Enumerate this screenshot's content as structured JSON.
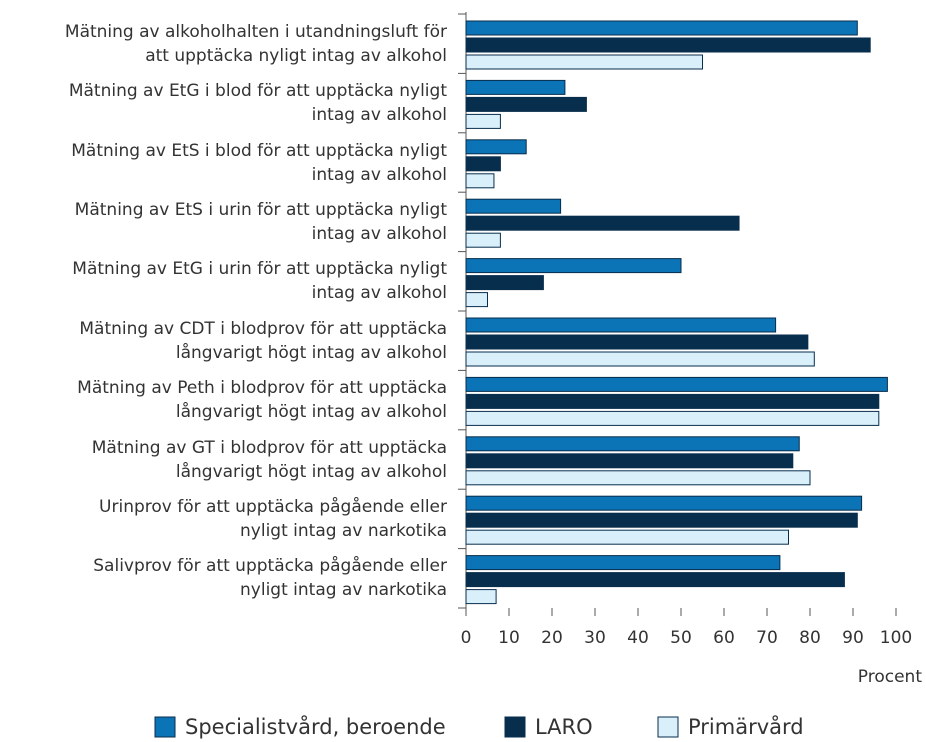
{
  "chart_data": {
    "type": "hbar",
    "categories": [
      "Mätning av alkoholhalten i utandningsluft för\natt upptäcka nyligt intag av alkohol",
      "Mätning av EtG i blod för att upptäcka nyligt\nintag av alkohol",
      "Mätning av EtS i blod för att upptäcka nyligt\nintag av alkohol",
      "Mätning av EtS i urin för att upptäcka nyligt\nintag av alkohol",
      "Mätning av EtG i urin för att upptäcka nyligt\nintag av alkohol",
      "Mätning av CDT i blodprov för att upptäcka\nlångvarigt högt intag av alkohol",
      "Mätning av Peth i blodprov för att upptäcka\nlångvarigt högt intag av alkohol",
      "Mätning av GT i blodprov för att upptäcka\nlångvarigt högt intag av alkohol",
      "Urinprov för att upptäcka pågående eller\nnyligt intag av narkotika",
      "Salivprov för att upptäcka pågående eller\nnyligt intag av narkotika"
    ],
    "series": [
      {
        "name": "Specialistvård, beroende",
        "color": "#0b74b6",
        "values": [
          91,
          23,
          14,
          22,
          50,
          72,
          98,
          77.5,
          92,
          73
        ]
      },
      {
        "name": "LARO",
        "color": "#082e4d",
        "values": [
          94,
          28,
          8,
          63.5,
          18,
          79.5,
          96,
          76,
          91,
          88
        ]
      },
      {
        "name": "Primärvård",
        "color": "#d9eff9",
        "values": [
          55,
          8,
          6.5,
          8,
          5,
          81,
          96,
          80,
          75,
          7
        ]
      }
    ],
    "x_label": "Procent",
    "xlim": [
      0,
      100
    ],
    "xticks": [
      0,
      10,
      20,
      30,
      40,
      50,
      60,
      70,
      80,
      90,
      100
    ]
  }
}
